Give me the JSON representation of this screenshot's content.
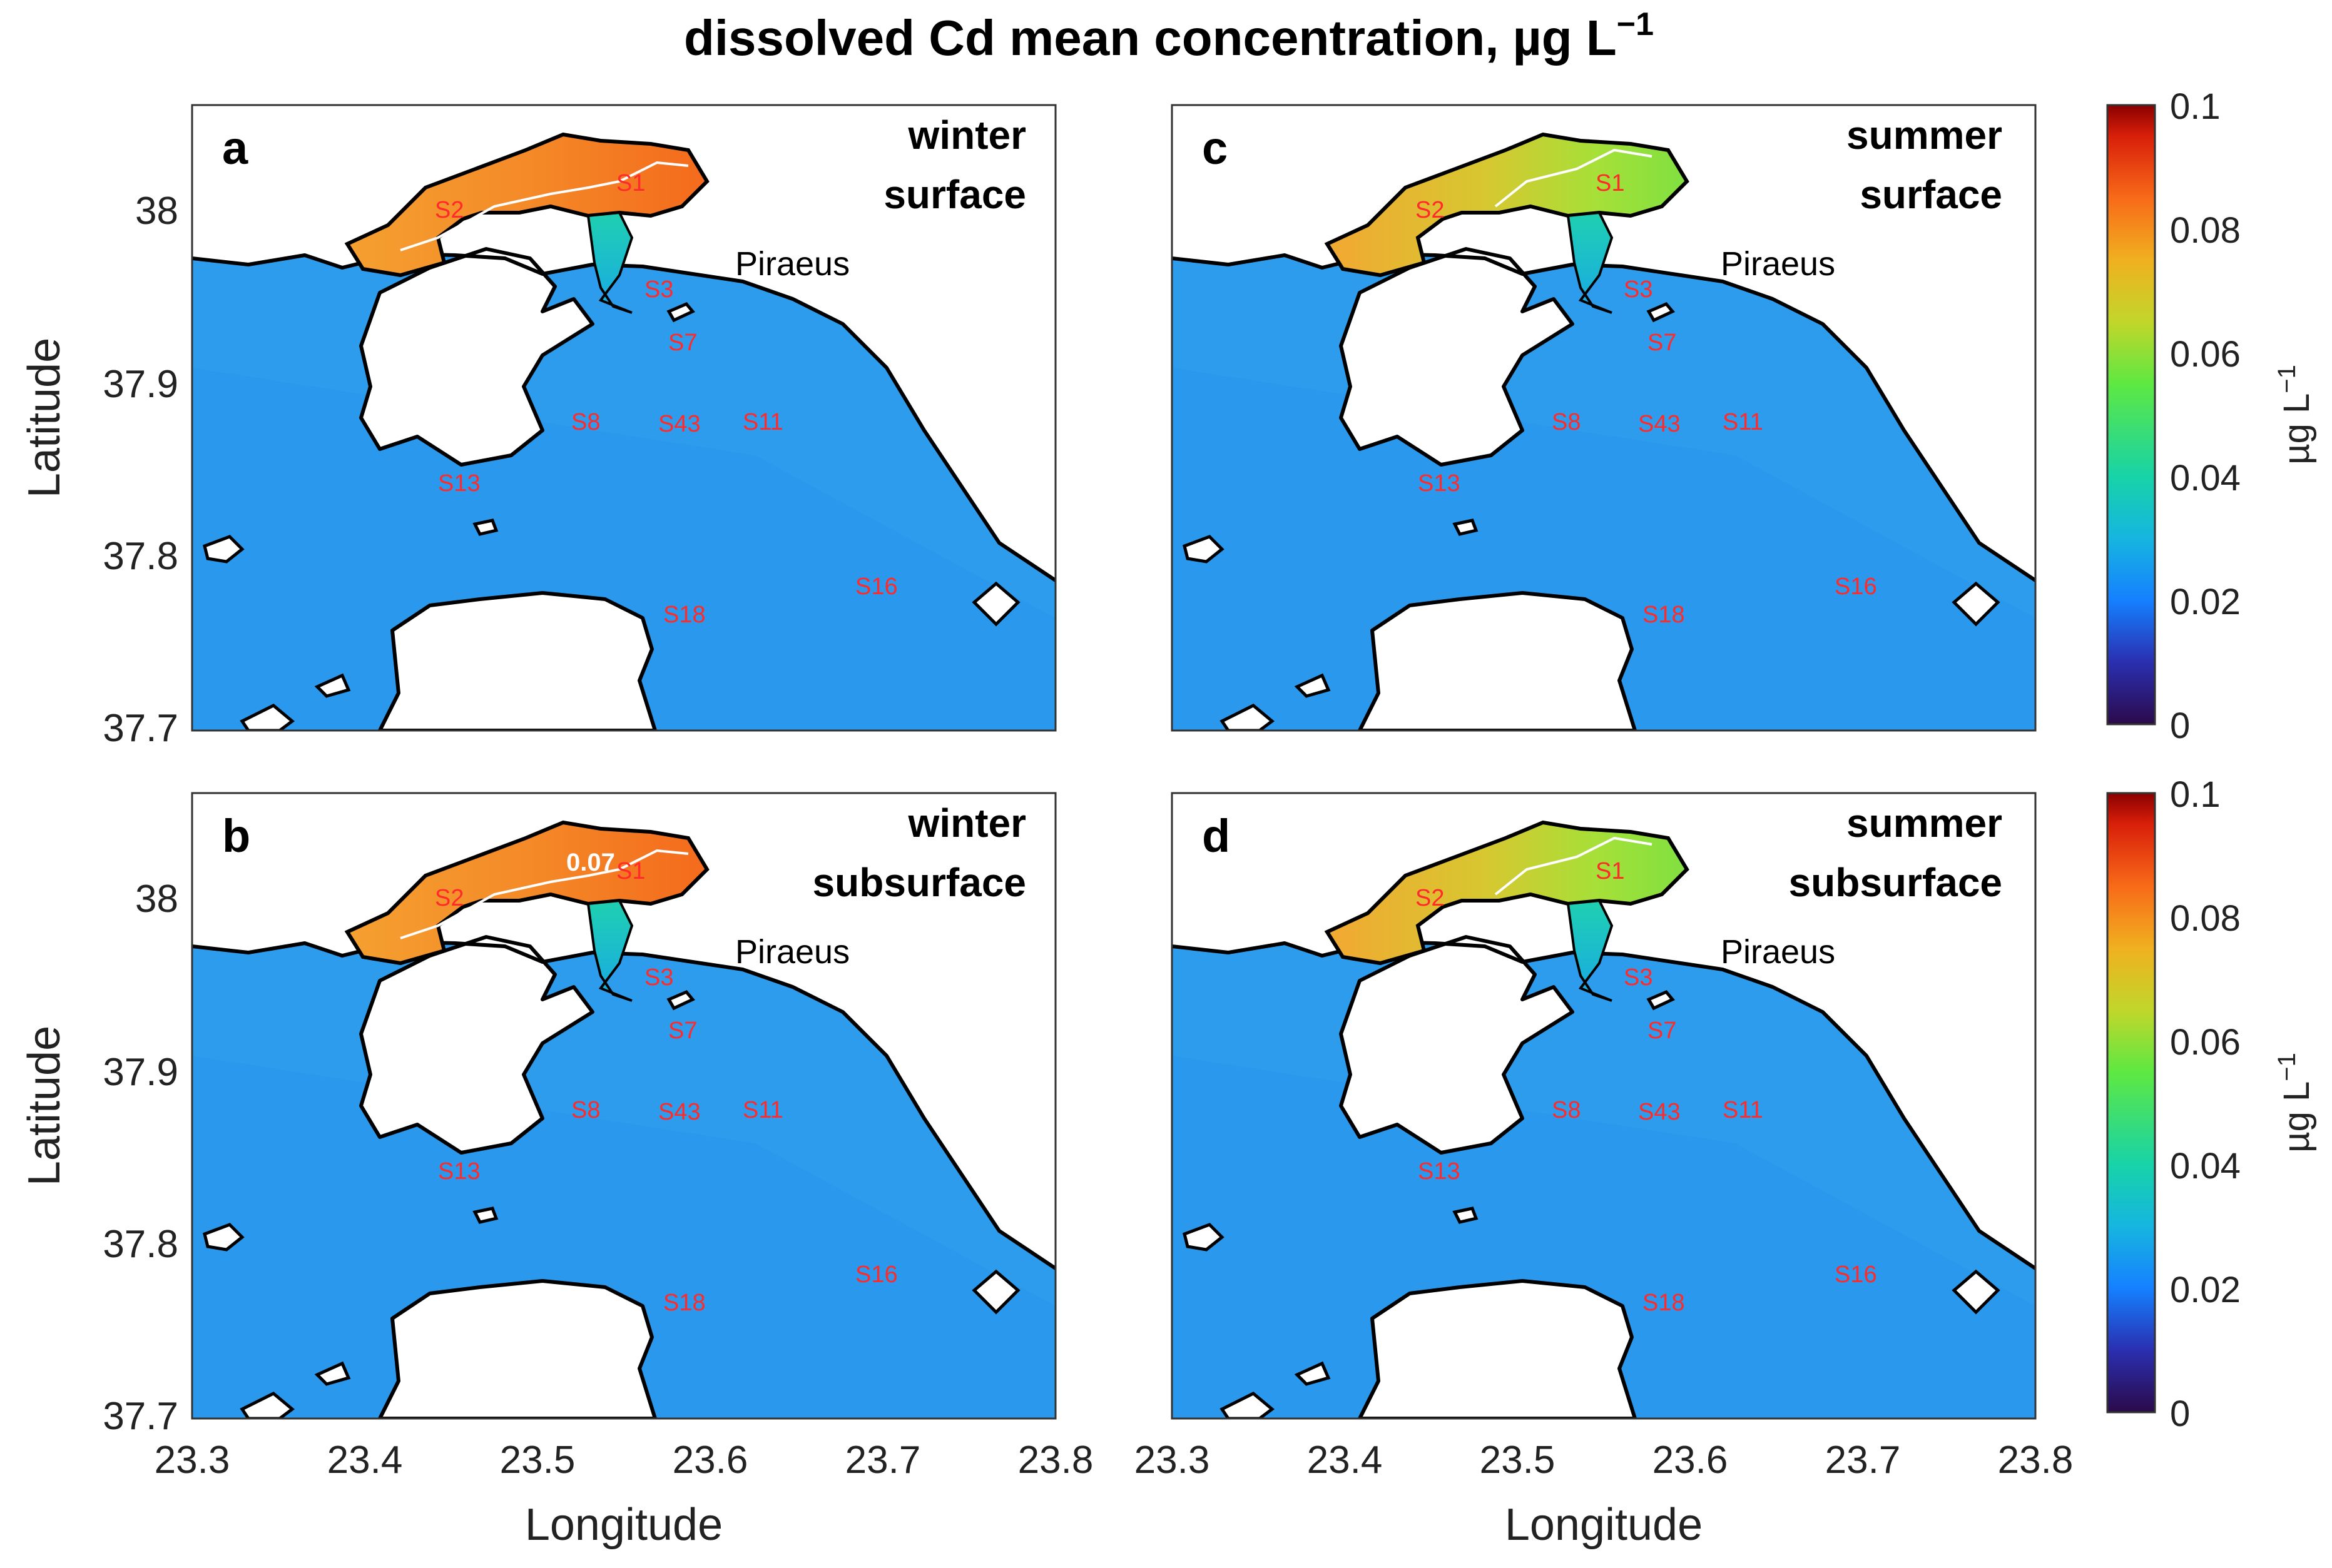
{
  "title": "dissolved Cd mean concentration, µg L",
  "title_exp": "−1",
  "xlabel": "Longitude",
  "ylabel": "Latitude",
  "x_ticks": [
    "23.3",
    "23.4",
    "23.5",
    "23.6",
    "23.7",
    "23.8"
  ],
  "y_ticks": [
    "38",
    "37.9",
    "37.8",
    "37.7"
  ],
  "place": "Piraeus",
  "colorbar": {
    "ticks": [
      "0.1",
      "0.08",
      "0.06",
      "0.04",
      "0.02",
      "0"
    ],
    "label": "µg L",
    "label_exp": "−1"
  },
  "panels": [
    {
      "letter": "a",
      "season": "winter",
      "depth": "surface"
    },
    {
      "letter": "b",
      "season": "winter",
      "depth": "subsurface"
    },
    {
      "letter": "c",
      "season": "summer",
      "depth": "surface"
    },
    {
      "letter": "d",
      "season": "summer",
      "depth": "subsurface"
    }
  ],
  "stations": [
    "S1",
    "S2",
    "S3",
    "S7",
    "S8",
    "S43",
    "S11",
    "S13",
    "S16",
    "S18"
  ],
  "contour_label": "0.07",
  "chart_data": {
    "type": "heatmap",
    "title": "dissolved Cd mean concentration, µg L−1",
    "xlabel": "Longitude",
    "ylabel": "Latitude",
    "xlim": [
      23.3,
      23.8
    ],
    "ylim": [
      37.7,
      38.05
    ],
    "clim": [
      0,
      0.1
    ],
    "colorbar_unit": "µg L−1",
    "panels": [
      {
        "id": "a",
        "season": "winter",
        "depth": "surface",
        "elefsis_bay": 0.075,
        "channel": 0.03,
        "saronic_gulf": 0.02
      },
      {
        "id": "b",
        "season": "winter",
        "depth": "subsurface",
        "elefsis_bay": 0.075,
        "channel": 0.03,
        "saronic_gulf": 0.02
      },
      {
        "id": "c",
        "season": "summer",
        "depth": "surface",
        "elefsis_bay": 0.055,
        "channel": 0.03,
        "saronic_gulf": 0.02
      },
      {
        "id": "d",
        "season": "summer",
        "depth": "subsurface",
        "elefsis_bay": 0.055,
        "channel": 0.03,
        "saronic_gulf": 0.02
      }
    ]
  }
}
